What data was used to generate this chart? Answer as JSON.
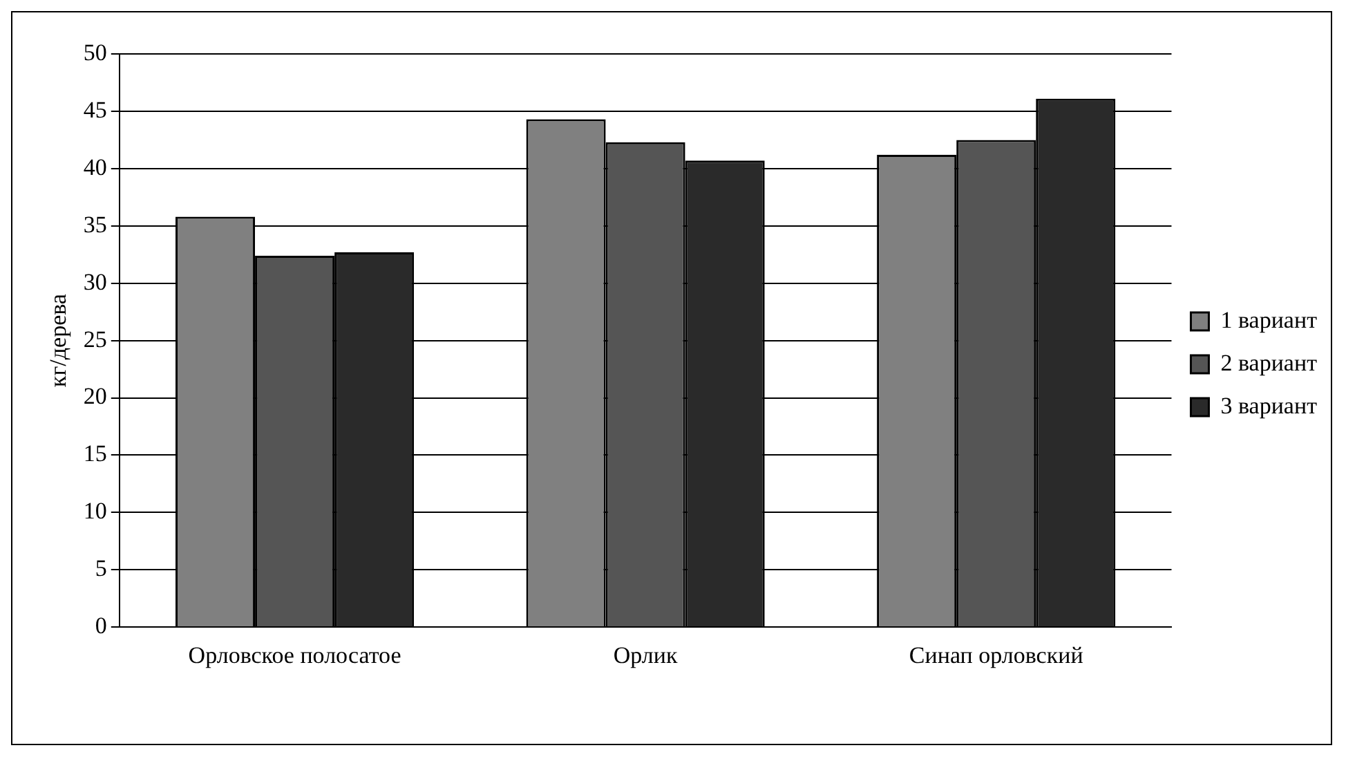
{
  "chart_data": {
    "type": "bar",
    "ylabel": "кг/дерева",
    "categories": [
      "Орловское полосатое",
      "Орлик",
      "Синап орловский"
    ],
    "series": [
      {
        "name": "1 вариант",
        "color": "#808080",
        "values": [
          35.8,
          44.3,
          41.2
        ]
      },
      {
        "name": "2 вариант",
        "color": "#555555",
        "values": [
          32.4,
          42.3,
          42.5
        ]
      },
      {
        "name": "3 вариант",
        "color": "#2a2a2a",
        "values": [
          32.7,
          40.7,
          46.1
        ]
      }
    ],
    "ylim": [
      0,
      50
    ],
    "yticks": [
      0,
      5,
      10,
      15,
      20,
      25,
      30,
      35,
      40,
      45,
      50
    ],
    "grid": "y",
    "legend": "right"
  }
}
